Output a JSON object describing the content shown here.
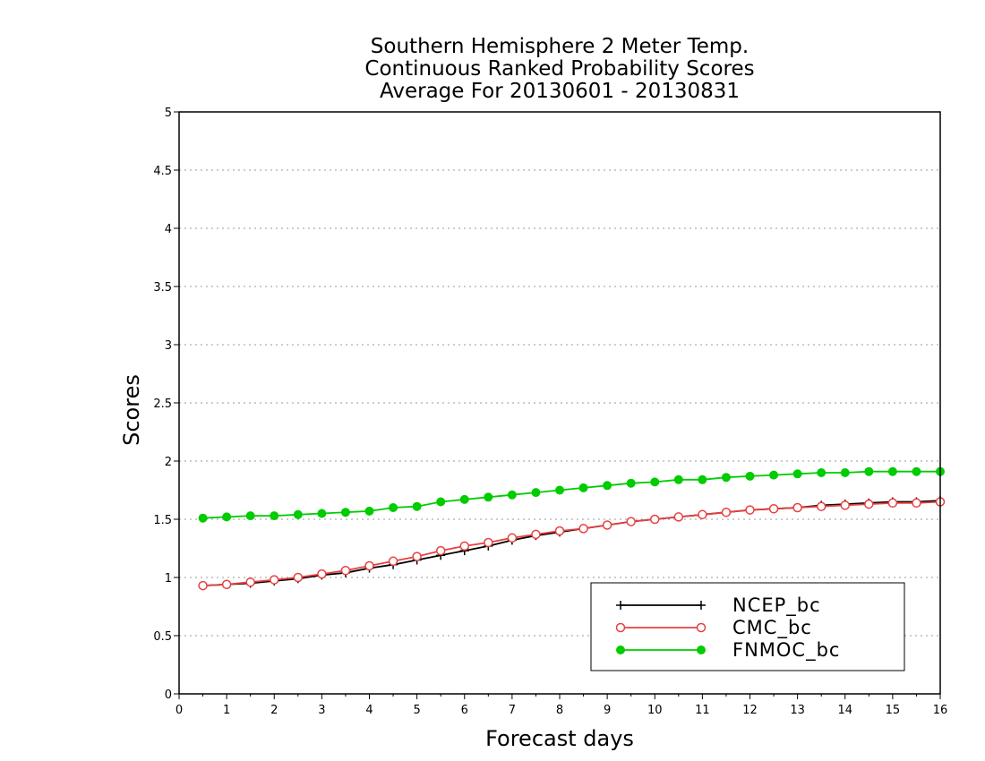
{
  "chart_data": {
    "type": "line",
    "title_lines": [
      "Southern Hemisphere 2 Meter Temp.",
      "Continuous Ranked Probability Scores",
      "Average For 20130601 - 20130831"
    ],
    "xlabel": "Forecast days",
    "ylabel": "Scores",
    "xlim": [
      0,
      16
    ],
    "ylim": [
      0,
      5
    ],
    "x_ticks": [
      "0",
      "1",
      "2",
      "3",
      "4",
      "5",
      "6",
      "7",
      "8",
      "9",
      "10",
      "11",
      "12",
      "13",
      "14",
      "15",
      "16"
    ],
    "y_ticks": [
      "0",
      "0.5",
      "1",
      "1.5",
      "2",
      "2.5",
      "3",
      "3.5",
      "4",
      "4.5",
      "5"
    ],
    "grid": "horizontal dotted",
    "legend_position": "bottom-right",
    "x": [
      0.5,
      1,
      1.5,
      2,
      2.5,
      3,
      3.5,
      4,
      4.5,
      5,
      5.5,
      6,
      6.5,
      7,
      7.5,
      8,
      8.5,
      9,
      9.5,
      10,
      10.5,
      11,
      11.5,
      12,
      12.5,
      13,
      13.5,
      14,
      14.5,
      15,
      15.5,
      16
    ],
    "series": [
      {
        "name": "NCEP_bc",
        "color": "#000000",
        "marker": "plus",
        "values": [
          0.93,
          0.94,
          0.95,
          0.97,
          0.99,
          1.02,
          1.04,
          1.08,
          1.11,
          1.15,
          1.19,
          1.23,
          1.27,
          1.32,
          1.36,
          1.39,
          1.42,
          1.45,
          1.48,
          1.5,
          1.52,
          1.54,
          1.56,
          1.58,
          1.59,
          1.6,
          1.62,
          1.63,
          1.64,
          1.65,
          1.65,
          1.66
        ]
      },
      {
        "name": "CMC_bc",
        "color": "#e84040",
        "marker": "open-circle",
        "values": [
          0.93,
          0.94,
          0.96,
          0.98,
          1.0,
          1.03,
          1.06,
          1.1,
          1.14,
          1.18,
          1.23,
          1.27,
          1.3,
          1.34,
          1.37,
          1.4,
          1.42,
          1.45,
          1.48,
          1.5,
          1.52,
          1.54,
          1.56,
          1.58,
          1.59,
          1.6,
          1.61,
          1.62,
          1.63,
          1.64,
          1.64,
          1.65
        ]
      },
      {
        "name": "FNMOC_bc",
        "color": "#00cc00",
        "marker": "filled-circle",
        "values": [
          1.51,
          1.52,
          1.53,
          1.53,
          1.54,
          1.55,
          1.56,
          1.57,
          1.6,
          1.61,
          1.65,
          1.67,
          1.69,
          1.71,
          1.73,
          1.75,
          1.77,
          1.79,
          1.81,
          1.82,
          1.84,
          1.84,
          1.86,
          1.87,
          1.88,
          1.89,
          1.9,
          1.9,
          1.91,
          1.91,
          1.91,
          1.91
        ]
      }
    ]
  }
}
